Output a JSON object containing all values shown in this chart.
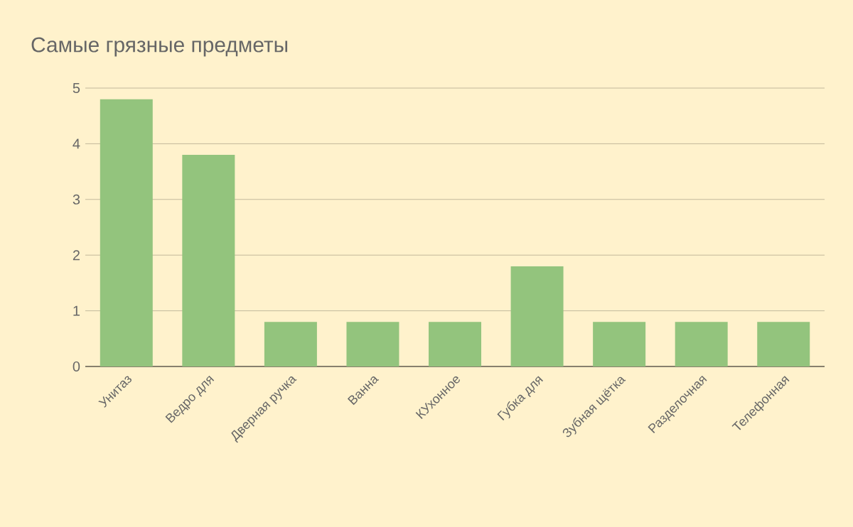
{
  "chart_data": {
    "type": "bar",
    "title": "Самые грязные предметы",
    "categories": [
      "Унитаз",
      "Ведро для",
      "Дверная ручка",
      "Ванна",
      "КУхонное",
      "Губка для",
      "Зубная щётка",
      "Разделочная",
      "Телефонная"
    ],
    "values": [
      4.8,
      3.8,
      0.8,
      0.8,
      0.8,
      1.8,
      0.8,
      0.8,
      0.8
    ],
    "color": "#93c47d",
    "ylim": [
      0,
      5
    ],
    "yticks": [
      0,
      1,
      2,
      3,
      4,
      5
    ],
    "grid": "y"
  }
}
